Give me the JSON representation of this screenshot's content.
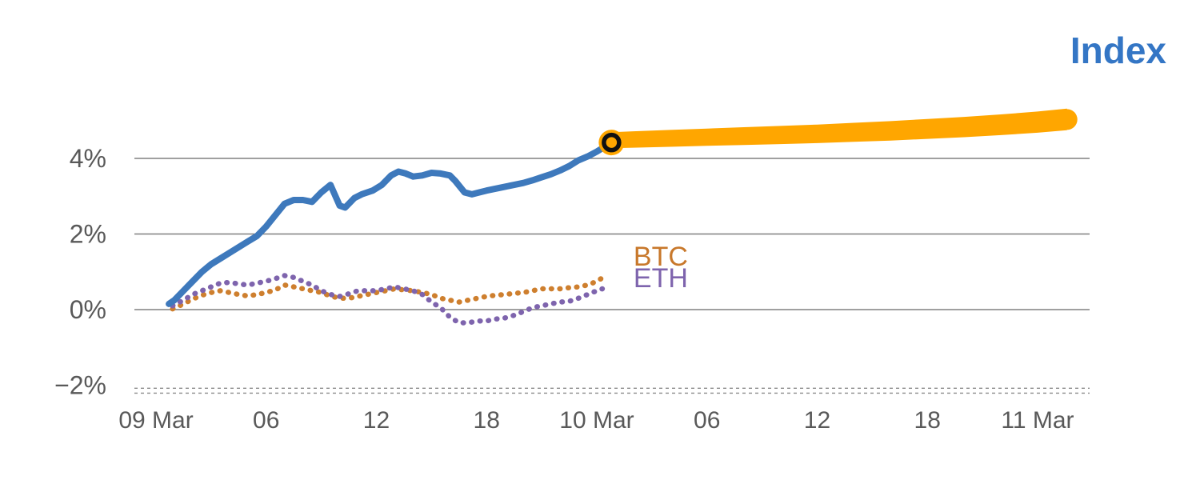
{
  "chart_data": {
    "type": "line",
    "title": "Index",
    "background": "#ffffff",
    "grid": {
      "color": "#808080",
      "dashed_color": "#8C8C8C"
    },
    "axis_text_color": "#595959",
    "x_axis": {
      "ticks": [
        {
          "hour": 0,
          "label": "09 Mar"
        },
        {
          "hour": 6,
          "label": "06"
        },
        {
          "hour": 12,
          "label": "12"
        },
        {
          "hour": 18,
          "label": "18"
        },
        {
          "hour": 24,
          "label": "10 Mar"
        },
        {
          "hour": 30,
          "label": "06"
        },
        {
          "hour": 36,
          "label": "12"
        },
        {
          "hour": 42,
          "label": "18"
        },
        {
          "hour": 48,
          "label": "11 Mar"
        }
      ]
    },
    "y_axis": {
      "ticks": [
        {
          "value": 4,
          "label": "4%",
          "grid": "solid"
        },
        {
          "value": 2,
          "label": "2%",
          "grid": "solid"
        },
        {
          "value": 0,
          "label": "0%",
          "grid": "solid"
        },
        {
          "value": -2,
          "label": "−2%",
          "grid": "dashed"
        }
      ],
      "dashed_baselines": [
        -2.08,
        -2.21
      ]
    },
    "series": [
      {
        "name": "BTC",
        "style": "dotted",
        "color": "#CE7F2E",
        "width": 6.5,
        "points": [
          [
            0.9,
            0.02
          ],
          [
            1.5,
            0.15
          ],
          [
            2,
            0.28
          ],
          [
            2.5,
            0.38
          ],
          [
            3,
            0.45
          ],
          [
            3.5,
            0.5
          ],
          [
            4,
            0.45
          ],
          [
            4.5,
            0.4
          ],
          [
            5,
            0.36
          ],
          [
            5.5,
            0.4
          ],
          [
            6,
            0.45
          ],
          [
            6.5,
            0.52
          ],
          [
            7,
            0.65
          ],
          [
            7.5,
            0.6
          ],
          [
            8,
            0.55
          ],
          [
            8.5,
            0.5
          ],
          [
            9,
            0.45
          ],
          [
            9.5,
            0.36
          ],
          [
            10,
            0.3
          ],
          [
            10.5,
            0.3
          ],
          [
            11,
            0.35
          ],
          [
            11.5,
            0.4
          ],
          [
            12,
            0.45
          ],
          [
            12.5,
            0.5
          ],
          [
            13,
            0.55
          ],
          [
            13.5,
            0.52
          ],
          [
            14,
            0.5
          ],
          [
            14.5,
            0.45
          ],
          [
            15,
            0.4
          ],
          [
            15.5,
            0.3
          ],
          [
            16,
            0.25
          ],
          [
            16.5,
            0.2
          ],
          [
            17,
            0.25
          ],
          [
            17.5,
            0.3
          ],
          [
            18,
            0.35
          ],
          [
            18.5,
            0.38
          ],
          [
            19,
            0.4
          ],
          [
            19.5,
            0.43
          ],
          [
            20,
            0.45
          ],
          [
            20.5,
            0.5
          ],
          [
            21,
            0.55
          ],
          [
            21.5,
            0.55
          ],
          [
            22,
            0.55
          ],
          [
            22.5,
            0.58
          ],
          [
            23,
            0.6
          ],
          [
            23.5,
            0.65
          ],
          [
            24,
            0.75
          ],
          [
            24.5,
            0.9
          ]
        ]
      },
      {
        "name": "ETH",
        "style": "dotted",
        "color": "#7E64AD",
        "width": 6.5,
        "points": [
          [
            0.9,
            0.1
          ],
          [
            1.5,
            0.25
          ],
          [
            2,
            0.4
          ],
          [
            2.5,
            0.5
          ],
          [
            3,
            0.6
          ],
          [
            3.5,
            0.7
          ],
          [
            4,
            0.72
          ],
          [
            4.5,
            0.68
          ],
          [
            5,
            0.65
          ],
          [
            5.5,
            0.7
          ],
          [
            6,
            0.75
          ],
          [
            6.5,
            0.82
          ],
          [
            7,
            0.9
          ],
          [
            7.5,
            0.85
          ],
          [
            8,
            0.75
          ],
          [
            8.5,
            0.65
          ],
          [
            9,
            0.5
          ],
          [
            9.5,
            0.4
          ],
          [
            10,
            0.35
          ],
          [
            10.5,
            0.42
          ],
          [
            11,
            0.5
          ],
          [
            11.5,
            0.5
          ],
          [
            12,
            0.5
          ],
          [
            12.5,
            0.55
          ],
          [
            13,
            0.6
          ],
          [
            13.5,
            0.55
          ],
          [
            14,
            0.5
          ],
          [
            14.5,
            0.4
          ],
          [
            15,
            0.2
          ],
          [
            15.5,
            0.05
          ],
          [
            16,
            -0.2
          ],
          [
            16.5,
            -0.35
          ],
          [
            17,
            -0.35
          ],
          [
            17.5,
            -0.3
          ],
          [
            18,
            -0.3
          ],
          [
            18.5,
            -0.25
          ],
          [
            19,
            -0.22
          ],
          [
            19.5,
            -0.15
          ],
          [
            20,
            -0.05
          ],
          [
            20.5,
            0.05
          ],
          [
            21,
            0.1
          ],
          [
            21.5,
            0.15
          ],
          [
            22,
            0.2
          ],
          [
            22.5,
            0.22
          ],
          [
            23,
            0.3
          ],
          [
            23.5,
            0.4
          ],
          [
            24,
            0.5
          ],
          [
            24.3,
            0.55
          ]
        ]
      },
      {
        "name": "Index",
        "style": "solid",
        "color": "#3E79BC",
        "width": 8,
        "points": [
          [
            0.7,
            0.15
          ],
          [
            1,
            0.25
          ],
          [
            1.5,
            0.5
          ],
          [
            2,
            0.75
          ],
          [
            2.5,
            1.0
          ],
          [
            3,
            1.2
          ],
          [
            3.5,
            1.35
          ],
          [
            4,
            1.5
          ],
          [
            4.5,
            1.65
          ],
          [
            5,
            1.8
          ],
          [
            5.5,
            1.95
          ],
          [
            6,
            2.2
          ],
          [
            6.5,
            2.5
          ],
          [
            7,
            2.8
          ],
          [
            7.5,
            2.9
          ],
          [
            8,
            2.9
          ],
          [
            8.5,
            2.85
          ],
          [
            9,
            3.1
          ],
          [
            9.5,
            3.3
          ],
          [
            10,
            2.75
          ],
          [
            10.3,
            2.7
          ],
          [
            10.8,
            2.95
          ],
          [
            11.2,
            3.05
          ],
          [
            11.8,
            3.15
          ],
          [
            12.3,
            3.3
          ],
          [
            12.8,
            3.55
          ],
          [
            13.2,
            3.65
          ],
          [
            13.6,
            3.6
          ],
          [
            14,
            3.52
          ],
          [
            14.5,
            3.55
          ],
          [
            15,
            3.62
          ],
          [
            15.5,
            3.6
          ],
          [
            16,
            3.55
          ],
          [
            16.3,
            3.4
          ],
          [
            16.8,
            3.1
          ],
          [
            17.2,
            3.05
          ],
          [
            17.6,
            3.1
          ],
          [
            18,
            3.15
          ],
          [
            18.5,
            3.2
          ],
          [
            19,
            3.25
          ],
          [
            19.5,
            3.3
          ],
          [
            20,
            3.35
          ],
          [
            20.5,
            3.42
          ],
          [
            21,
            3.5
          ],
          [
            21.5,
            3.58
          ],
          [
            22,
            3.68
          ],
          [
            22.5,
            3.8
          ],
          [
            23,
            3.95
          ],
          [
            23.5,
            4.05
          ],
          [
            24,
            4.18
          ],
          [
            24.4,
            4.3
          ],
          [
            24.8,
            4.42
          ]
        ]
      },
      {
        "name": "Index forecast",
        "style": "band",
        "color": "#FFA600",
        "points": [
          [
            24.8,
            4.48
          ],
          [
            26,
            4.5
          ],
          [
            28,
            4.53
          ],
          [
            30,
            4.56
          ],
          [
            32,
            4.59
          ],
          [
            34,
            4.62
          ],
          [
            36,
            4.65
          ],
          [
            38,
            4.69
          ],
          [
            40,
            4.73
          ],
          [
            42,
            4.78
          ],
          [
            44,
            4.83
          ],
          [
            46,
            4.89
          ],
          [
            48,
            4.96
          ],
          [
            49.6,
            5.03
          ]
        ]
      }
    ],
    "marker": {
      "t": 24.8,
      "value": 4.42,
      "outer_color": "#FFA600",
      "ring_color": "#111111"
    },
    "annotations": [
      {
        "text": "BTC",
        "color": "#C8782B",
        "t": 26.0,
        "value": 1.42
      },
      {
        "text": "ETH",
        "color": "#7E64AD",
        "t": 26.0,
        "value": 0.85
      }
    ]
  }
}
